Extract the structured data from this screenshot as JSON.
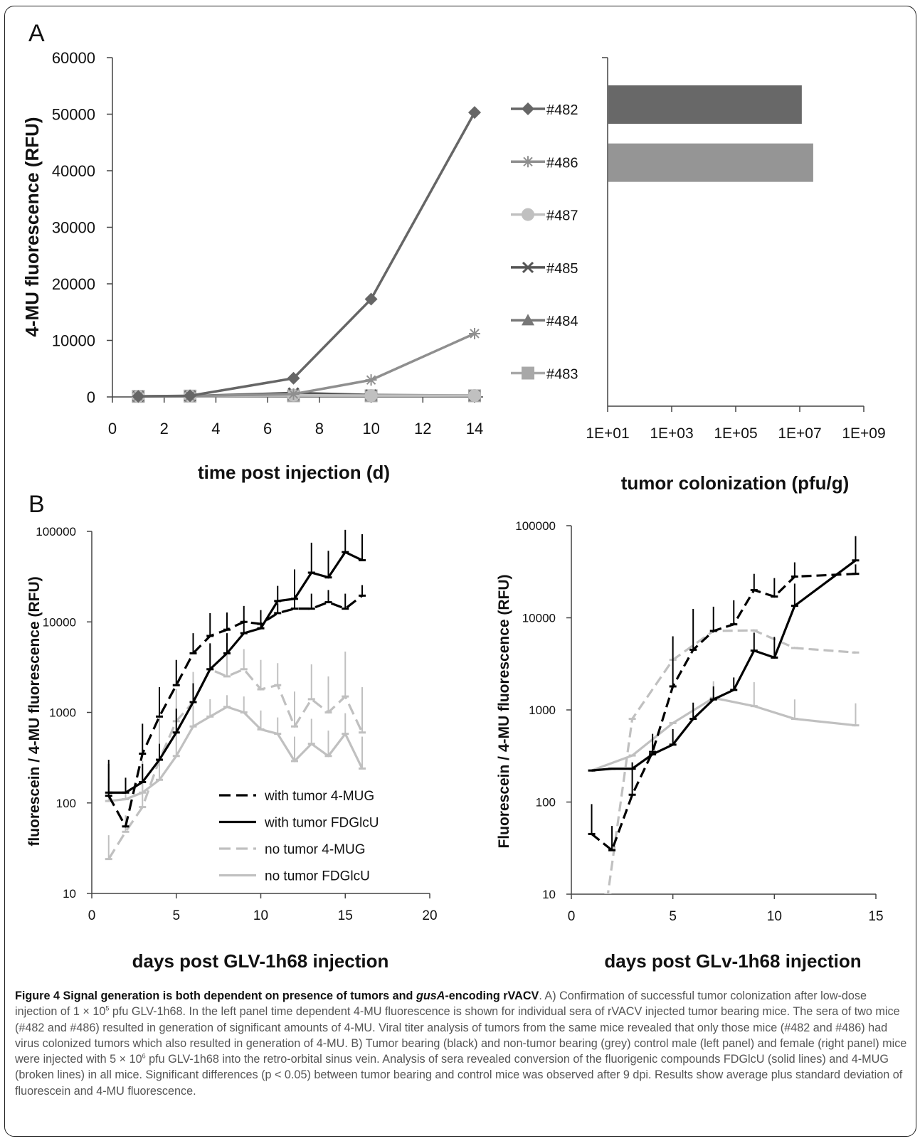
{
  "figure": {
    "panel_a_label": "A",
    "panel_b_label": "B",
    "caption": {
      "title_part1": "Figure 4 Signal generation is both dependent on presence of tumors and ",
      "title_italic": "gusA",
      "title_part2": "-encoding rVACV",
      "s1": ". A) Confirmation of successful tumor colonization after low-dose injection of 1 × 10",
      "s1_sup": "5",
      "s2": " pfu GLV-1h68. In the left panel time dependent 4-MU fluorescence is shown for individual sera of rVACV injected tumor bearing mice. The sera of two mice (#482 and #486) resulted in generation of significant amounts of 4-MU. Viral titer analysis of tumors from the same mice revealed that only those mice (#482 and #486) had virus colonized tumors which also resulted in generation of 4-MU. B) Tumor bearing (black) and non-tumor bearing (grey) control male (left panel) and female (right panel) mice were injected with 5 × 10",
      "s2_sup": "6",
      "s3": " pfu GLV-1h68 into the retro-orbital sinus vein. Analysis of sera revealed conversion of the fluorigenic compounds FDGlcU (solid lines) and 4-MUG (broken lines) in all mice. Significant differences (p < 0.05) between tumor bearing and control mice was observed after 9 dpi. Results show average plus standard deviation of fluorescein and 4-MU fluorescence."
    }
  },
  "chart_data": [
    {
      "id": "A-left",
      "type": "line",
      "xlabel": "time post injection (d)",
      "ylabel": "4-MU fluorescence (RFU)",
      "xlim": [
        0,
        14
      ],
      "ylim": [
        0,
        60000
      ],
      "xticks": [
        "0",
        "2",
        "4",
        "6",
        "8",
        "10",
        "12",
        "14"
      ],
      "yticks": [
        "0",
        "10000",
        "20000",
        "30000",
        "40000",
        "50000",
        "60000"
      ],
      "grid": false,
      "legend": "right",
      "series": [
        {
          "name": "#482",
          "marker": "diamond",
          "color": "#666666",
          "x": [
            1,
            3,
            7,
            10,
            14
          ],
          "y": [
            100,
            200,
            3300,
            17300,
            50300
          ]
        },
        {
          "name": "#486",
          "marker": "asterisk",
          "color": "#8f8f8f",
          "x": [
            1,
            3,
            7,
            10,
            14
          ],
          "y": [
            100,
            150,
            500,
            3000,
            11200
          ]
        },
        {
          "name": "#487",
          "marker": "circle",
          "color": "#c0c0c0",
          "x": [
            1,
            3,
            7,
            10,
            14
          ],
          "y": [
            100,
            150,
            300,
            250,
            250
          ]
        },
        {
          "name": "#485",
          "marker": "x",
          "color": "#555555",
          "x": [
            1,
            3,
            7,
            10,
            14
          ],
          "y": [
            100,
            150,
            700,
            350,
            250
          ]
        },
        {
          "name": "#484",
          "marker": "triangle",
          "color": "#777777",
          "x": [
            1,
            3,
            7,
            10,
            14
          ],
          "y": [
            100,
            150,
            300,
            250,
            250
          ]
        },
        {
          "name": "#483",
          "marker": "square",
          "color": "#a8a8a8",
          "x": [
            1,
            3,
            7,
            10,
            14
          ],
          "y": [
            100,
            150,
            200,
            200,
            200
          ]
        }
      ]
    },
    {
      "id": "A-right",
      "type": "bar",
      "orientation": "horizontal",
      "xlabel": "tumor colonization (pfu/g)",
      "xscale": "log",
      "xlim": [
        10,
        1000000000
      ],
      "xticks": [
        "1E+01",
        "1E+03",
        "1E+05",
        "1E+07",
        "1E+09"
      ],
      "categories": [
        "#482",
        "#486",
        "#487",
        "#485",
        "#484",
        "#483"
      ],
      "values": [
        11000000,
        25000000,
        10,
        10,
        10,
        10
      ],
      "colors": [
        "#686868",
        "#959595",
        "#c0c0c0",
        "#555555",
        "#777777",
        "#a8a8a8"
      ]
    },
    {
      "id": "B-left",
      "type": "line",
      "xlabel": "days post GLV-1h68 injection",
      "ylabel": "fluorescein / 4-MU fluorescence (RFU)",
      "xlim": [
        0,
        20
      ],
      "yscale": "log",
      "ylim": [
        10,
        100000
      ],
      "xticks": [
        "0",
        "5",
        "10",
        "15",
        "20"
      ],
      "yticks": [
        "10",
        "100",
        "1000",
        "10000",
        "100000"
      ],
      "legend": "bottom-center",
      "series": [
        {
          "name": "with tumor 4-MUG",
          "color": "#000000",
          "dash": true,
          "x": [
            1,
            2,
            3,
            4,
            5,
            6,
            7,
            8,
            9,
            10,
            11,
            12,
            13,
            14,
            15,
            16
          ],
          "y": [
            120,
            55,
            350,
            900,
            2000,
            4500,
            7000,
            8200,
            10000,
            9500,
            12500,
            14000,
            14000,
            16500,
            14000,
            19500
          ],
          "err": [
            150,
            0,
            400,
            1000,
            1800,
            3000,
            5500,
            4500,
            5000,
            4000,
            3500,
            6000,
            6500,
            6000,
            6500,
            6000
          ]
        },
        {
          "name": "with tumor FDGlcU",
          "color": "#000000",
          "dash": false,
          "x": [
            1,
            2,
            3,
            4,
            5,
            6,
            7,
            8,
            9,
            10,
            11,
            12,
            13,
            14,
            15,
            16
          ],
          "y": [
            130,
            130,
            170,
            300,
            600,
            1300,
            3000,
            4500,
            7500,
            8500,
            17000,
            18000,
            35000,
            31000,
            59000,
            48000
          ],
          "err": [
            170,
            60,
            100,
            150,
            500,
            800,
            2800,
            3000,
            3000,
            3000,
            8000,
            20000,
            40000,
            30000,
            45000,
            45000
          ]
        },
        {
          "name": "no tumor 4-MUG",
          "color": "#c0c0c0",
          "dash": true,
          "x": [
            1,
            2,
            3,
            4,
            5,
            6,
            7,
            8,
            9,
            10,
            11,
            12,
            13,
            14,
            15,
            16
          ],
          "y": [
            24,
            48,
            90,
            300,
            800,
            1300,
            3000,
            2500,
            3000,
            1800,
            2000,
            700,
            1400,
            1000,
            1500,
            600
          ],
          "err": [
            20,
            25,
            200,
            600,
            1000,
            1500,
            2500,
            1800,
            2000,
            2000,
            1500,
            1000,
            2000,
            1500,
            3200,
            1300
          ]
        },
        {
          "name": "no tumor FDGlcU",
          "color": "#c0c0c0",
          "dash": false,
          "x": [
            1,
            2,
            3,
            4,
            5,
            6,
            7,
            8,
            9,
            10,
            11,
            12,
            13,
            14,
            15,
            16
          ],
          "y": [
            105,
            110,
            130,
            180,
            330,
            700,
            900,
            1150,
            1000,
            650,
            580,
            290,
            450,
            330,
            580,
            240
          ],
          "err": [
            80,
            40,
            90,
            150,
            300,
            500,
            500,
            400,
            500,
            400,
            300,
            250,
            400,
            300,
            400,
            300
          ]
        }
      ]
    },
    {
      "id": "B-right",
      "type": "line",
      "xlabel": "days post GLv-1h68 injection",
      "ylabel": "Fluorescein / 4-MU fluorescence (RFU)",
      "xlim": [
        0,
        15
      ],
      "yscale": "log",
      "ylim": [
        10,
        100000
      ],
      "xticks": [
        "0",
        "5",
        "10",
        "15"
      ],
      "yticks": [
        "10",
        "100",
        "1000",
        "10000",
        "100000"
      ],
      "series": [
        {
          "name": "with tumor 4-MUG",
          "color": "#000000",
          "dash": true,
          "x": [
            1,
            2,
            3,
            4,
            5,
            6,
            7,
            8,
            9,
            10,
            11,
            14
          ],
          "y": [
            45,
            30,
            120,
            350,
            1800,
            4500,
            7200,
            8500,
            20000,
            17000,
            28000,
            30000
          ],
          "err": [
            50,
            25,
            150,
            200,
            4500,
            8000,
            6000,
            7000,
            10000,
            10000,
            12000,
            8000
          ]
        },
        {
          "name": "with tumor FDGlcU",
          "color": "#000000",
          "dash": false,
          "x": [
            1,
            2,
            3,
            4,
            5,
            6,
            7,
            8,
            9,
            10,
            11,
            14
          ],
          "y": [
            220,
            230,
            230,
            330,
            420,
            800,
            1300,
            1650,
            4400,
            3700,
            13500,
            42000
          ],
          "err": [
            0,
            0,
            0,
            100,
            200,
            400,
            500,
            600,
            2500,
            2500,
            10000,
            35000
          ]
        },
        {
          "name": "no tumor 4-MUG",
          "color": "#c0c0c0",
          "dash": true,
          "x": [
            1,
            1.8,
            3,
            5,
            7,
            9,
            11,
            14
          ],
          "y": [
            3,
            10,
            800,
            3500,
            7200,
            7300,
            4700,
            4200
          ],
          "err": [
            0,
            0,
            0,
            0,
            0,
            0,
            0,
            0
          ]
        },
        {
          "name": "no tumor FDGlcU",
          "color": "#c0c0c0",
          "dash": false,
          "x": [
            1,
            3,
            5,
            7,
            9,
            11,
            14
          ],
          "y": [
            220,
            320,
            720,
            1350,
            1100,
            800,
            680
          ],
          "err": [
            0,
            0,
            0,
            700,
            900,
            500,
            500
          ]
        }
      ]
    }
  ]
}
